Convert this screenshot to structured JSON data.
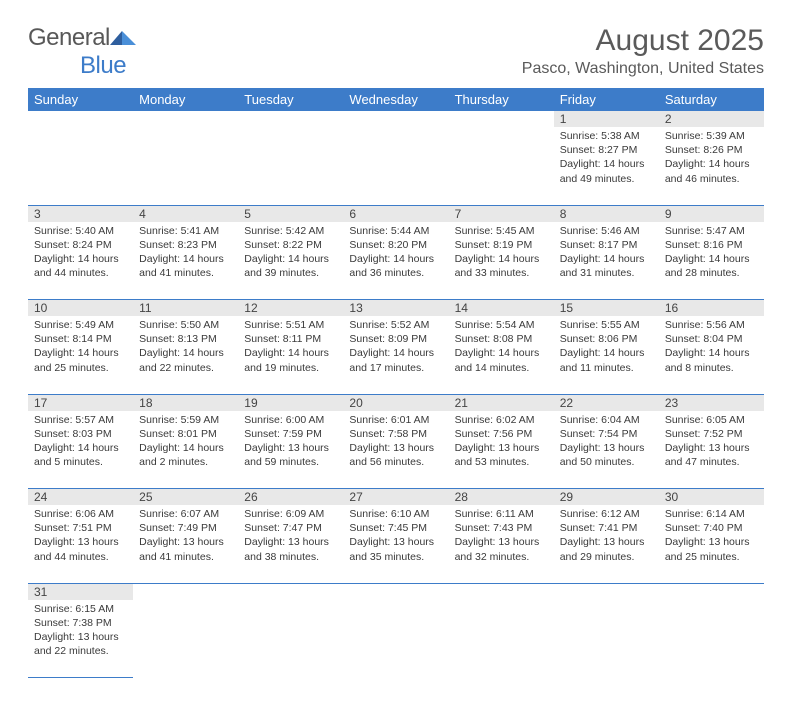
{
  "logo": {
    "word1": "General",
    "word2": "Blue"
  },
  "title": "August 2025",
  "location": "Pasco, Washington, United States",
  "colors": {
    "header_bg": "#3d7cc9",
    "header_text": "#ffffff",
    "daynum_bg": "#e8e8e8",
    "border": "#3d7cc9",
    "text": "#3a3a3a",
    "title_text": "#5a5a5a"
  },
  "weekdays": [
    "Sunday",
    "Monday",
    "Tuesday",
    "Wednesday",
    "Thursday",
    "Friday",
    "Saturday"
  ],
  "weeks": [
    [
      null,
      null,
      null,
      null,
      null,
      {
        "n": "1",
        "sunrise": "5:38 AM",
        "sunset": "8:27 PM",
        "dl": "14 hours and 49 minutes."
      },
      {
        "n": "2",
        "sunrise": "5:39 AM",
        "sunset": "8:26 PM",
        "dl": "14 hours and 46 minutes."
      }
    ],
    [
      {
        "n": "3",
        "sunrise": "5:40 AM",
        "sunset": "8:24 PM",
        "dl": "14 hours and 44 minutes."
      },
      {
        "n": "4",
        "sunrise": "5:41 AM",
        "sunset": "8:23 PM",
        "dl": "14 hours and 41 minutes."
      },
      {
        "n": "5",
        "sunrise": "5:42 AM",
        "sunset": "8:22 PM",
        "dl": "14 hours and 39 minutes."
      },
      {
        "n": "6",
        "sunrise": "5:44 AM",
        "sunset": "8:20 PM",
        "dl": "14 hours and 36 minutes."
      },
      {
        "n": "7",
        "sunrise": "5:45 AM",
        "sunset": "8:19 PM",
        "dl": "14 hours and 33 minutes."
      },
      {
        "n": "8",
        "sunrise": "5:46 AM",
        "sunset": "8:17 PM",
        "dl": "14 hours and 31 minutes."
      },
      {
        "n": "9",
        "sunrise": "5:47 AM",
        "sunset": "8:16 PM",
        "dl": "14 hours and 28 minutes."
      }
    ],
    [
      {
        "n": "10",
        "sunrise": "5:49 AM",
        "sunset": "8:14 PM",
        "dl": "14 hours and 25 minutes."
      },
      {
        "n": "11",
        "sunrise": "5:50 AM",
        "sunset": "8:13 PM",
        "dl": "14 hours and 22 minutes."
      },
      {
        "n": "12",
        "sunrise": "5:51 AM",
        "sunset": "8:11 PM",
        "dl": "14 hours and 19 minutes."
      },
      {
        "n": "13",
        "sunrise": "5:52 AM",
        "sunset": "8:09 PM",
        "dl": "14 hours and 17 minutes."
      },
      {
        "n": "14",
        "sunrise": "5:54 AM",
        "sunset": "8:08 PM",
        "dl": "14 hours and 14 minutes."
      },
      {
        "n": "15",
        "sunrise": "5:55 AM",
        "sunset": "8:06 PM",
        "dl": "14 hours and 11 minutes."
      },
      {
        "n": "16",
        "sunrise": "5:56 AM",
        "sunset": "8:04 PM",
        "dl": "14 hours and 8 minutes."
      }
    ],
    [
      {
        "n": "17",
        "sunrise": "5:57 AM",
        "sunset": "8:03 PM",
        "dl": "14 hours and 5 minutes."
      },
      {
        "n": "18",
        "sunrise": "5:59 AM",
        "sunset": "8:01 PM",
        "dl": "14 hours and 2 minutes."
      },
      {
        "n": "19",
        "sunrise": "6:00 AM",
        "sunset": "7:59 PM",
        "dl": "13 hours and 59 minutes."
      },
      {
        "n": "20",
        "sunrise": "6:01 AM",
        "sunset": "7:58 PM",
        "dl": "13 hours and 56 minutes."
      },
      {
        "n": "21",
        "sunrise": "6:02 AM",
        "sunset": "7:56 PM",
        "dl": "13 hours and 53 minutes."
      },
      {
        "n": "22",
        "sunrise": "6:04 AM",
        "sunset": "7:54 PM",
        "dl": "13 hours and 50 minutes."
      },
      {
        "n": "23",
        "sunrise": "6:05 AM",
        "sunset": "7:52 PM",
        "dl": "13 hours and 47 minutes."
      }
    ],
    [
      {
        "n": "24",
        "sunrise": "6:06 AM",
        "sunset": "7:51 PM",
        "dl": "13 hours and 44 minutes."
      },
      {
        "n": "25",
        "sunrise": "6:07 AM",
        "sunset": "7:49 PM",
        "dl": "13 hours and 41 minutes."
      },
      {
        "n": "26",
        "sunrise": "6:09 AM",
        "sunset": "7:47 PM",
        "dl": "13 hours and 38 minutes."
      },
      {
        "n": "27",
        "sunrise": "6:10 AM",
        "sunset": "7:45 PM",
        "dl": "13 hours and 35 minutes."
      },
      {
        "n": "28",
        "sunrise": "6:11 AM",
        "sunset": "7:43 PM",
        "dl": "13 hours and 32 minutes."
      },
      {
        "n": "29",
        "sunrise": "6:12 AM",
        "sunset": "7:41 PM",
        "dl": "13 hours and 29 minutes."
      },
      {
        "n": "30",
        "sunrise": "6:14 AM",
        "sunset": "7:40 PM",
        "dl": "13 hours and 25 minutes."
      }
    ],
    [
      {
        "n": "31",
        "sunrise": "6:15 AM",
        "sunset": "7:38 PM",
        "dl": "13 hours and 22 minutes."
      },
      null,
      null,
      null,
      null,
      null,
      null
    ]
  ],
  "labels": {
    "sunrise": "Sunrise:",
    "sunset": "Sunset:",
    "daylight": "Daylight:"
  }
}
